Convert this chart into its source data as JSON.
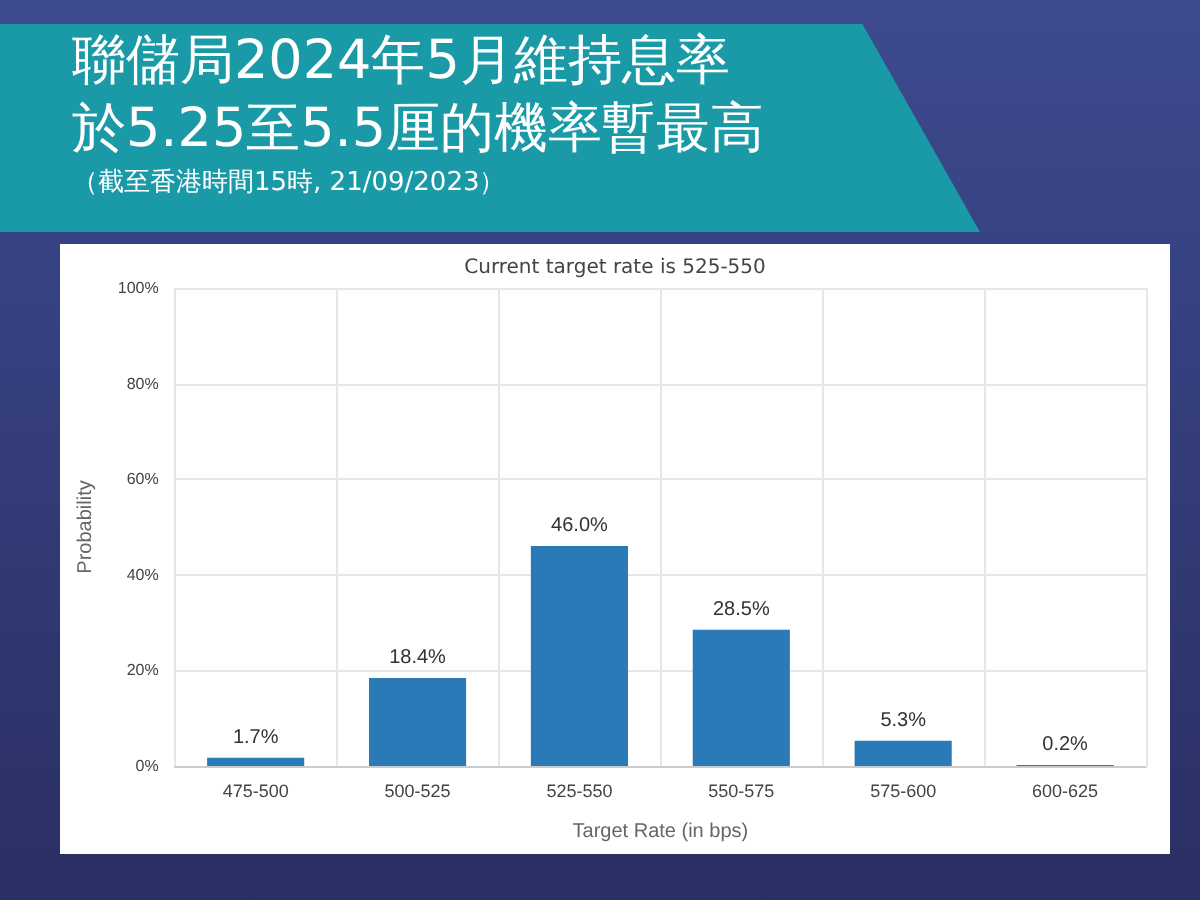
{
  "chart_data": {
    "type": "bar",
    "title": "聯儲局2024年5月維持息率於5.25至5.5厘的機率暫最高",
    "subtitle": "（截至香港時間15時, 21/09/2023）",
    "annotations": [
      "Current target rate is 525-550"
    ],
    "categories": [
      "475-500",
      "500-525",
      "525-550",
      "550-575",
      "575-600",
      "600-625"
    ],
    "values": [
      1.7,
      18.4,
      46.0,
      28.5,
      5.3,
      0.2
    ],
    "value_labels": [
      "1.7%",
      "18.4%",
      "46.0%",
      "28.5%",
      "5.3%",
      "0.2%"
    ],
    "color": "#2a7ab8",
    "xlabel": "Target Rate (in bps)",
    "ylabel": "Probability",
    "ylim": [
      0,
      100
    ],
    "yticks": [
      {
        "value": 0,
        "label": "0%"
      },
      {
        "value": 20,
        "label": "20%"
      },
      {
        "value": 40,
        "label": "40%"
      },
      {
        "value": 60,
        "label": "60%"
      },
      {
        "value": 80,
        "label": "80%"
      },
      {
        "value": 100,
        "label": "100%"
      }
    ],
    "grid": true
  }
}
